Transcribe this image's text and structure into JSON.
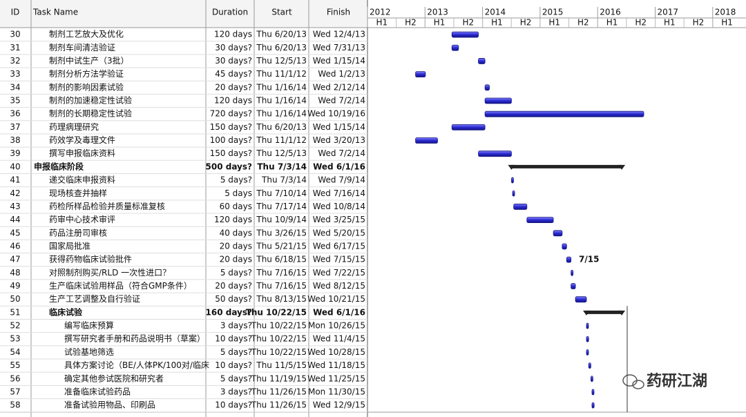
{
  "columns": {
    "id": "ID",
    "name": "Task Name",
    "duration": "Duration",
    "start": "Start",
    "finish": "Finish"
  },
  "timeline": {
    "years": [
      "2012",
      "2013",
      "2014",
      "2015",
      "2016",
      "2017",
      "2018"
    ],
    "halves": [
      "H1",
      "H2",
      "H1",
      "H2",
      "H1",
      "H2",
      "H1",
      "H2",
      "H1",
      "H2",
      "H1",
      "H2",
      "H1"
    ]
  },
  "rows": [
    {
      "id": "30",
      "name": "制剂工艺放大及优化",
      "duration": "120 days",
      "start": "Thu 6/20/13",
      "finish": "Wed 12/4/13",
      "level": 1,
      "summary": false
    },
    {
      "id": "31",
      "name": "制剂车间清洁验证",
      "duration": "30 days?",
      "start": "Thu 6/20/13",
      "finish": "Wed 7/31/13",
      "level": 1,
      "summary": false
    },
    {
      "id": "32",
      "name": "制剂中试生产（3批）",
      "duration": "30 days?",
      "start": "Thu 12/5/13",
      "finish": "Wed 1/15/14",
      "level": 1,
      "summary": false
    },
    {
      "id": "33",
      "name": "制剂分析方法学验证",
      "duration": "45 days?",
      "start": "Thu 11/1/12",
      "finish": "Wed 1/2/13",
      "level": 1,
      "summary": false
    },
    {
      "id": "34",
      "name": "制剂的影响因素试验",
      "duration": "20 days?",
      "start": "Thu 1/16/14",
      "finish": "Wed 2/12/14",
      "level": 1,
      "summary": false
    },
    {
      "id": "35",
      "name": "制剂的加速稳定性试验",
      "duration": "120 days",
      "start": "Thu 1/16/14",
      "finish": "Wed 7/2/14",
      "level": 1,
      "summary": false
    },
    {
      "id": "36",
      "name": "制剂的长期稳定性试验",
      "duration": "720 days?",
      "start": "Thu 1/16/14",
      "finish": "Wed 10/19/16",
      "level": 1,
      "summary": false
    },
    {
      "id": "37",
      "name": "药理病理研究",
      "duration": "150 days?",
      "start": "Thu 6/20/13",
      "finish": "Wed 1/15/14",
      "level": 1,
      "summary": false
    },
    {
      "id": "38",
      "name": "药效学及毒理文件",
      "duration": "100 days?",
      "start": "Thu 11/1/12",
      "finish": "Wed 3/20/13",
      "level": 1,
      "summary": false
    },
    {
      "id": "39",
      "name": "撰写申报临床资料",
      "duration": "150 days?",
      "start": "Thu 12/5/13",
      "finish": "Wed 7/2/14",
      "level": 1,
      "summary": false
    },
    {
      "id": "40",
      "name": "申报临床阶段",
      "duration": "500 days?",
      "start": "Thu 7/3/14",
      "finish": "Wed 6/1/16",
      "level": 0,
      "summary": true
    },
    {
      "id": "41",
      "name": "递交临床申报资料",
      "duration": "5 days?",
      "start": "Thu 7/3/14",
      "finish": "Wed 7/9/14",
      "level": 1,
      "summary": false
    },
    {
      "id": "42",
      "name": "现场核查并抽样",
      "duration": "5 days",
      "start": "Thu 7/10/14",
      "finish": "Wed 7/16/14",
      "level": 1,
      "summary": false
    },
    {
      "id": "43",
      "name": "药检所样品检验并质量标准复核",
      "duration": "60 days",
      "start": "Thu 7/17/14",
      "finish": "Wed 10/8/14",
      "level": 1,
      "summary": false
    },
    {
      "id": "44",
      "name": "药审中心技术审评",
      "duration": "120 days",
      "start": "Thu 10/9/14",
      "finish": "Wed 3/25/15",
      "level": 1,
      "summary": false
    },
    {
      "id": "45",
      "name": "药品注册司审核",
      "duration": "40 days",
      "start": "Thu 3/26/15",
      "finish": "Wed 5/20/15",
      "level": 1,
      "summary": false
    },
    {
      "id": "46",
      "name": "国家局批准",
      "duration": "20 days",
      "start": "Thu 5/21/15",
      "finish": "Wed 6/17/15",
      "level": 1,
      "summary": false
    },
    {
      "id": "47",
      "name": "获得药物临床试验批件",
      "duration": "20 days",
      "start": "Thu 6/18/15",
      "finish": "Wed 7/15/15",
      "level": 1,
      "summary": false
    },
    {
      "id": "48",
      "name": "对照制剂购买/RLD 一次性进口？",
      "duration": "5 days?",
      "start": "Thu 7/16/15",
      "finish": "Wed 7/22/15",
      "level": 1,
      "summary": false
    },
    {
      "id": "49",
      "name": "生产临床试验用样品（符合GMP条件）",
      "duration": "20 days?",
      "start": "Thu 7/16/15",
      "finish": "Wed 8/12/15",
      "level": 1,
      "summary": false
    },
    {
      "id": "50",
      "name": "生产工艺调整及自行验证",
      "duration": "50 days?",
      "start": "Thu 8/13/15",
      "finish": "Wed 10/21/15",
      "level": 1,
      "summary": false
    },
    {
      "id": "51",
      "name": "临床试验",
      "duration": "160 days?",
      "start": "Thu 10/22/15",
      "finish": "Wed 6/1/16",
      "level": 1,
      "summary": true
    },
    {
      "id": "52",
      "name": "编写临床预算",
      "duration": "3 days?",
      "start": "Thu 10/22/15",
      "finish": "Mon 10/26/15",
      "level": 2,
      "summary": false
    },
    {
      "id": "53",
      "name": "撰写研究者手册和药品说明书（草案）",
      "duration": "10 days?",
      "start": "Thu 10/22/15",
      "finish": "Wed 11/4/15",
      "level": 2,
      "summary": false
    },
    {
      "id": "54",
      "name": "试验基地筛选",
      "duration": "5 days?",
      "start": "Thu 10/22/15",
      "finish": "Wed 10/28/15",
      "level": 2,
      "summary": false
    },
    {
      "id": "55",
      "name": "具体方案讨论（BE/人体PK/100对/临床",
      "duration": "10 days?",
      "start": "Thu 11/5/15",
      "finish": "Wed 11/18/15",
      "level": 2,
      "summary": false
    },
    {
      "id": "56",
      "name": "确定其他参试医院和研究者",
      "duration": "5 days?",
      "start": "Thu 11/19/15",
      "finish": "Wed 11/25/15",
      "level": 2,
      "summary": false
    },
    {
      "id": "57",
      "name": "准备临床试验药品",
      "duration": "3 days?",
      "start": "Thu 11/26/15",
      "finish": "Mon 11/30/15",
      "level": 2,
      "summary": false
    },
    {
      "id": "58",
      "name": "准备试验用物品、印刷品",
      "duration": "10 days?",
      "start": "Thu 11/26/15",
      "finish": "Wed 12/9/15",
      "level": 2,
      "summary": false
    }
  ],
  "annotation": "7/15",
  "watermark": "药研江湖"
}
